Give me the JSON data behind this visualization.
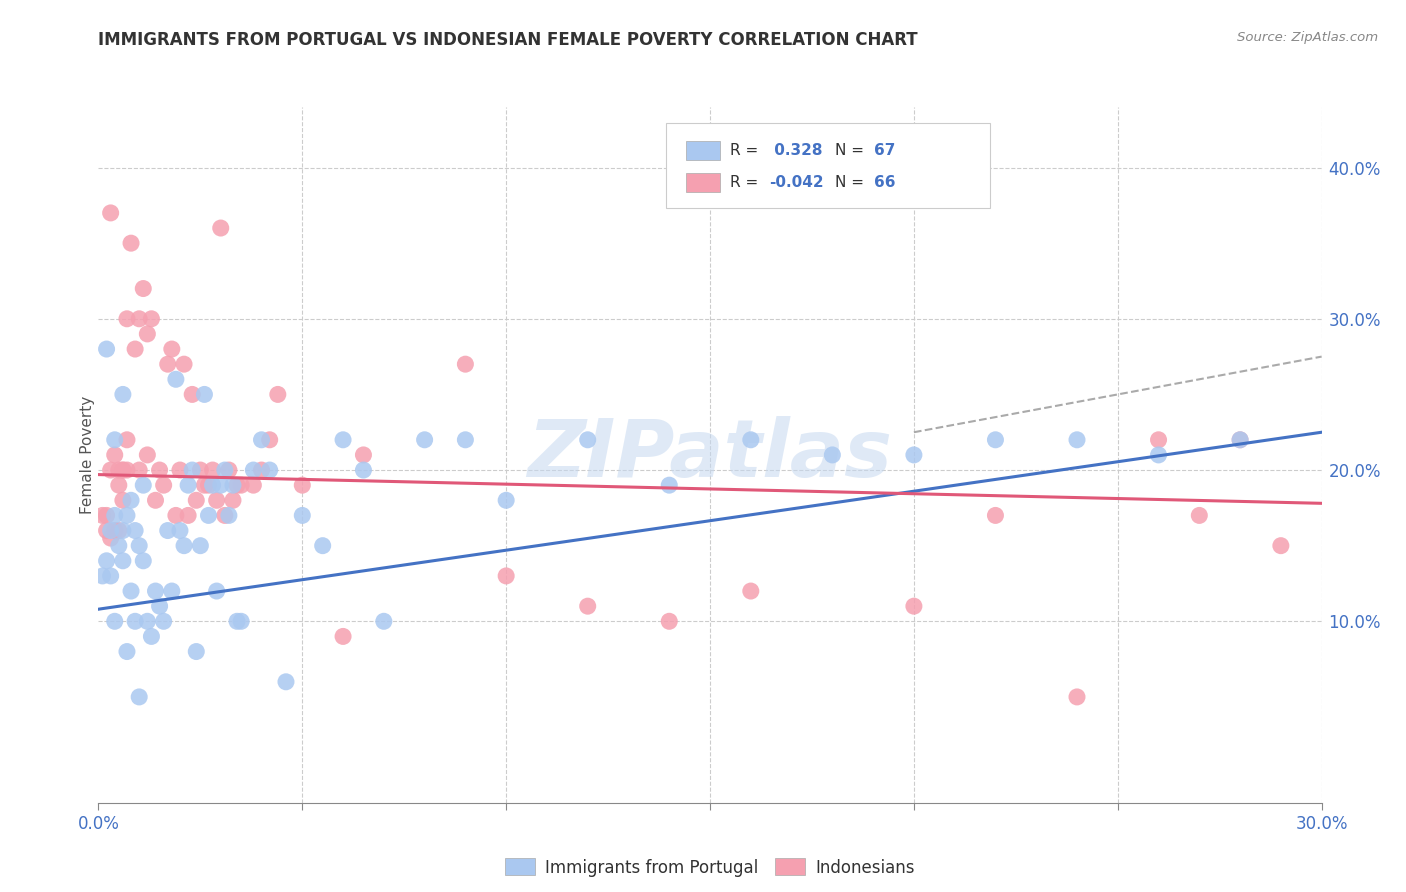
{
  "title": "IMMIGRANTS FROM PORTUGAL VS INDONESIAN FEMALE POVERTY CORRELATION CHART",
  "source": "Source: ZipAtlas.com",
  "ylabel": "Female Poverty",
  "right_yticks": [
    "40.0%",
    "30.0%",
    "20.0%",
    "10.0%"
  ],
  "right_ytick_vals": [
    0.4,
    0.3,
    0.2,
    0.1
  ],
  "xlim": [
    0.0,
    0.3
  ],
  "ylim": [
    -0.02,
    0.44
  ],
  "R_blue": 0.328,
  "N_blue": 67,
  "R_pink": -0.042,
  "N_pink": 66,
  "color_blue": "#aac8f0",
  "color_pink": "#f5a0b0",
  "line_blue": "#4472c4",
  "line_pink": "#e05878",
  "line_dashed_color": "#aaaaaa",
  "watermark": "ZIPatlas",
  "legend_label_blue": "Immigrants from Portugal",
  "legend_label_pink": "Indonesians",
  "blue_line_x0": 0.0,
  "blue_line_y0": 0.108,
  "blue_line_x1": 0.3,
  "blue_line_y1": 0.225,
  "pink_line_x0": 0.0,
  "pink_line_y0": 0.197,
  "pink_line_x1": 0.3,
  "pink_line_y1": 0.178,
  "dash_line_x0": 0.2,
  "dash_line_y0": 0.225,
  "dash_line_x1": 0.3,
  "dash_line_y1": 0.275,
  "blue_x": [
    0.001,
    0.002,
    0.003,
    0.003,
    0.004,
    0.004,
    0.005,
    0.006,
    0.006,
    0.007,
    0.007,
    0.008,
    0.008,
    0.009,
    0.009,
    0.01,
    0.011,
    0.011,
    0.012,
    0.013,
    0.014,
    0.015,
    0.016,
    0.017,
    0.018,
    0.019,
    0.02,
    0.021,
    0.022,
    0.023,
    0.024,
    0.025,
    0.026,
    0.027,
    0.028,
    0.029,
    0.03,
    0.031,
    0.032,
    0.033,
    0.034,
    0.035,
    0.038,
    0.04,
    0.042,
    0.046,
    0.05,
    0.055,
    0.06,
    0.065,
    0.07,
    0.08,
    0.09,
    0.1,
    0.12,
    0.14,
    0.16,
    0.18,
    0.2,
    0.22,
    0.24,
    0.26,
    0.28,
    0.002,
    0.004,
    0.006,
    0.01
  ],
  "blue_y": [
    0.13,
    0.14,
    0.13,
    0.16,
    0.1,
    0.17,
    0.15,
    0.14,
    0.16,
    0.08,
    0.17,
    0.12,
    0.18,
    0.1,
    0.16,
    0.15,
    0.14,
    0.19,
    0.1,
    0.09,
    0.12,
    0.11,
    0.1,
    0.16,
    0.12,
    0.26,
    0.16,
    0.15,
    0.19,
    0.2,
    0.08,
    0.15,
    0.25,
    0.17,
    0.19,
    0.12,
    0.19,
    0.2,
    0.17,
    0.19,
    0.1,
    0.1,
    0.2,
    0.22,
    0.2,
    0.06,
    0.17,
    0.15,
    0.22,
    0.2,
    0.1,
    0.22,
    0.22,
    0.18,
    0.22,
    0.19,
    0.22,
    0.21,
    0.21,
    0.22,
    0.22,
    0.21,
    0.22,
    0.28,
    0.22,
    0.25,
    0.05
  ],
  "pink_x": [
    0.001,
    0.002,
    0.003,
    0.003,
    0.004,
    0.004,
    0.005,
    0.005,
    0.006,
    0.006,
    0.007,
    0.007,
    0.008,
    0.009,
    0.01,
    0.011,
    0.012,
    0.013,
    0.014,
    0.015,
    0.016,
    0.017,
    0.018,
    0.019,
    0.02,
    0.021,
    0.022,
    0.023,
    0.024,
    0.025,
    0.026,
    0.027,
    0.028,
    0.029,
    0.03,
    0.031,
    0.032,
    0.033,
    0.034,
    0.035,
    0.038,
    0.04,
    0.042,
    0.044,
    0.05,
    0.06,
    0.065,
    0.09,
    0.1,
    0.12,
    0.14,
    0.16,
    0.2,
    0.22,
    0.24,
    0.26,
    0.27,
    0.28,
    0.29,
    0.002,
    0.003,
    0.005,
    0.006,
    0.007,
    0.01,
    0.012
  ],
  "pink_y": [
    0.17,
    0.17,
    0.155,
    0.2,
    0.16,
    0.21,
    0.19,
    0.2,
    0.18,
    0.2,
    0.2,
    0.22,
    0.35,
    0.28,
    0.3,
    0.32,
    0.29,
    0.3,
    0.18,
    0.2,
    0.19,
    0.27,
    0.28,
    0.17,
    0.2,
    0.27,
    0.17,
    0.25,
    0.18,
    0.2,
    0.19,
    0.19,
    0.2,
    0.18,
    0.36,
    0.17,
    0.2,
    0.18,
    0.19,
    0.19,
    0.19,
    0.2,
    0.22,
    0.25,
    0.19,
    0.09,
    0.21,
    0.27,
    0.13,
    0.11,
    0.1,
    0.12,
    0.11,
    0.17,
    0.05,
    0.22,
    0.17,
    0.22,
    0.15,
    0.16,
    0.37,
    0.16,
    0.2,
    0.3,
    0.2,
    0.21
  ]
}
